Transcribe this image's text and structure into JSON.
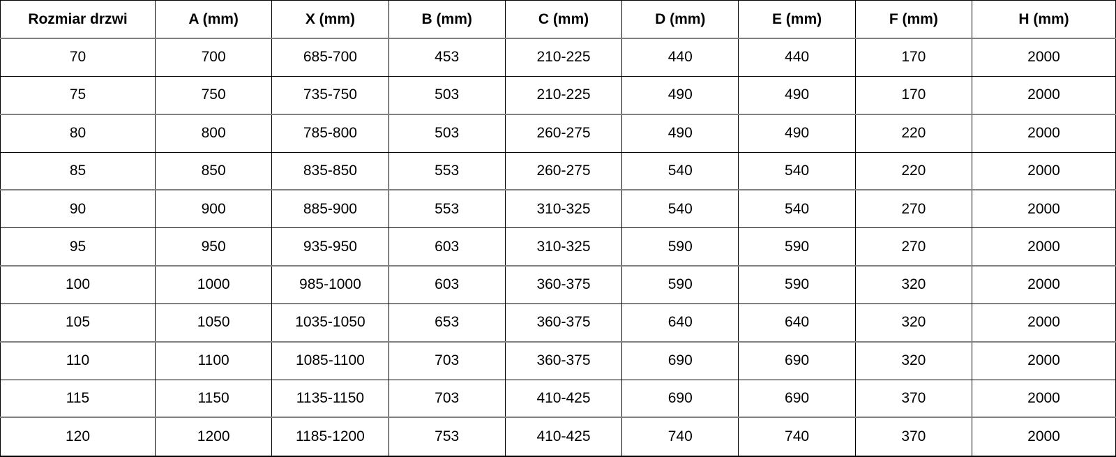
{
  "table": {
    "columns": [
      "Rozmiar drzwi",
      "A (mm)",
      "X (mm)",
      "B (mm)",
      "C (mm)",
      "D (mm)",
      "E (mm)",
      "F (mm)",
      "H (mm)"
    ],
    "rows": [
      [
        "70",
        "700",
        "685-700",
        "453",
        "210-225",
        "440",
        "440",
        "170",
        "2000"
      ],
      [
        "75",
        "750",
        "735-750",
        "503",
        "210-225",
        "490",
        "490",
        "170",
        "2000"
      ],
      [
        "80",
        "800",
        "785-800",
        "503",
        "260-275",
        "490",
        "490",
        "220",
        "2000"
      ],
      [
        "85",
        "850",
        "835-850",
        "553",
        "260-275",
        "540",
        "540",
        "220",
        "2000"
      ],
      [
        "90",
        "900",
        "885-900",
        "553",
        "310-325",
        "540",
        "540",
        "270",
        "2000"
      ],
      [
        "95",
        "950",
        "935-950",
        "603",
        "310-325",
        "590",
        "590",
        "270",
        "2000"
      ],
      [
        "100",
        "1000",
        "985-1000",
        "603",
        "360-375",
        "590",
        "590",
        "320",
        "2000"
      ],
      [
        "105",
        "1050",
        "1035-1050",
        "653",
        "360-375",
        "640",
        "640",
        "320",
        "2000"
      ],
      [
        "110",
        "1100",
        "1085-1100",
        "703",
        "360-375",
        "690",
        "690",
        "320",
        "2000"
      ],
      [
        "115",
        "1150",
        "1135-1150",
        "703",
        "410-425",
        "690",
        "690",
        "370",
        "2000"
      ],
      [
        "120",
        "1200",
        "1185-1200",
        "753",
        "410-425",
        "740",
        "740",
        "370",
        "2000"
      ]
    ],
    "colors": {
      "border": "#000000",
      "row_separator": "#808080",
      "text": "#000000",
      "background": "#ffffff"
    }
  }
}
